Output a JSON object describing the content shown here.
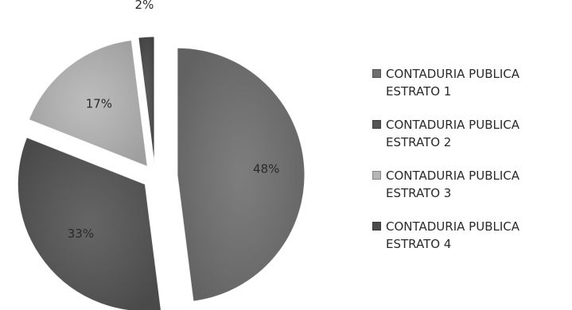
{
  "chart_data": {
    "type": "pie",
    "title": "",
    "categories": [
      "CONTADURIA PUBLICA ESTRATO 1",
      "CONTADURIA PUBLICA ESTRATO 2",
      "CONTADURIA PUBLICA ESTRATO 3",
      "CONTADURIA PUBLICA ESTRATO 4"
    ],
    "values": [
      48,
      33,
      17,
      2
    ],
    "value_labels": [
      "48%",
      "33%",
      "17%",
      "2%"
    ],
    "colors": [
      "#6f6f6f",
      "#545454",
      "#b5b5b5",
      "#4b4b4b"
    ],
    "exploded": true,
    "legend_position": "right",
    "legend": [
      {
        "line1": "CONTADURIA PUBLICA",
        "line2": "ESTRATO 1"
      },
      {
        "line1": "CONTADURIA PUBLICA",
        "line2": "ESTRATO 2"
      },
      {
        "line1": "CONTADURIA PUBLICA",
        "line2": "ESTRATO 3"
      },
      {
        "line1": "CONTADURIA PUBLICA",
        "line2": "ESTRATO 4"
      }
    ]
  }
}
